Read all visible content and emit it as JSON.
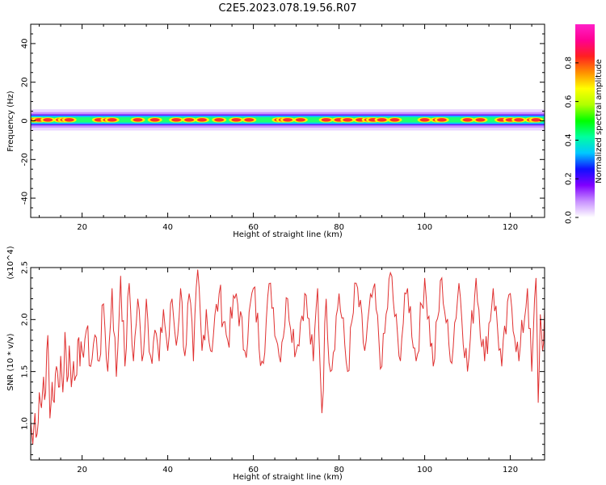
{
  "figure": {
    "title": "C2E5.2023.078.19.56.R07"
  },
  "chart_data": [
    {
      "type": "heatmap",
      "title": "C2E5.2023.078.19.56.R07",
      "xlabel": "Height of straight line (km)",
      "ylabel": "Frequency (Hz)",
      "xlim": [
        8,
        128
      ],
      "ylim": [
        -50,
        50
      ],
      "xticks": [
        20,
        40,
        60,
        80,
        100,
        120
      ],
      "yticks": [
        -40,
        -20,
        0,
        20,
        40
      ],
      "colorbar": {
        "label": "Normalized spectral amplitude",
        "range": [
          0,
          1
        ],
        "ticks": [
          "0.0",
          "0.2",
          "0.4",
          "0.6",
          "0.8"
        ],
        "colors": [
          "#ffffff",
          "#c890ff",
          "#8000ff",
          "#1010ff",
          "#00c8ff",
          "#00ffa0",
          "#00ff00",
          "#b0ff00",
          "#ffff00",
          "#ff9000",
          "#ff2020",
          "#ff0090",
          "#ff20c8"
        ]
      },
      "band": {
        "center_hz": 0.5,
        "half_width_hz": 2.5,
        "hot_spots_km": [
          9,
          10,
          12,
          15,
          16,
          17,
          24,
          26,
          27,
          33,
          37,
          42,
          45,
          48,
          52,
          56,
          59,
          66,
          67,
          68,
          71,
          77,
          80,
          82,
          85,
          87,
          88,
          90,
          93,
          100,
          103,
          104,
          110,
          113,
          118,
          120,
          122,
          125,
          126
        ]
      }
    },
    {
      "type": "line",
      "xlabel": "Height of straight line (km)",
      "ylabel": "SNR (10 * v/v)",
      "y_multiplier": "(x10^4)",
      "xlim": [
        8,
        128
      ],
      "ylim": [
        0.65,
        2.5
      ],
      "xticks": [
        20,
        40,
        60,
        80,
        100,
        120
      ],
      "yticks": [
        "1.0",
        "1.5",
        "2.0",
        "2.5"
      ],
      "line_color": "#e03030",
      "series": [
        {
          "x": [
            8,
            8.5,
            9,
            9.5,
            10,
            10.5,
            11,
            11.5,
            12,
            12.5,
            13,
            13.5,
            14,
            14.5,
            15,
            15.5,
            16,
            16.5,
            17,
            17.5,
            18,
            18.5,
            19,
            19.5,
            20,
            21,
            22,
            23,
            24,
            25,
            26,
            27,
            28,
            29,
            30,
            31,
            32,
            33,
            34,
            35,
            36,
            37,
            38,
            39,
            40,
            41,
            42,
            43,
            44,
            45,
            46,
            47,
            48,
            49,
            50,
            52,
            54,
            56,
            58,
            60,
            62,
            64,
            66,
            68,
            70,
            72,
            74,
            75,
            76,
            77,
            78,
            80,
            82,
            84,
            86,
            88,
            90,
            92,
            94,
            96,
            98,
            100,
            102,
            104,
            106,
            108,
            110,
            112,
            114,
            116,
            118,
            120,
            122,
            124,
            125,
            126,
            126.5,
            127,
            127.5,
            128
          ],
          "y": [
            1.02,
            0.8,
            1.1,
            0.9,
            1.3,
            1.15,
            1.45,
            1.3,
            1.85,
            1.05,
            1.4,
            1.2,
            1.55,
            1.35,
            1.65,
            1.3,
            1.88,
            1.4,
            1.75,
            1.35,
            1.6,
            1.45,
            1.8,
            1.55,
            1.7,
            1.9,
            1.55,
            1.85,
            1.6,
            2.15,
            1.5,
            2.3,
            1.45,
            2.42,
            1.55,
            2.35,
            1.6,
            2.2,
            1.6,
            2.2,
            1.65,
            1.9,
            1.6,
            2.1,
            1.7,
            2.2,
            1.75,
            2.3,
            1.65,
            2.25,
            1.6,
            2.48,
            1.7,
            2.1,
            1.7,
            2.25,
            1.8,
            2.25,
            1.7,
            2.3,
            1.6,
            2.35,
            1.65,
            2.2,
            1.7,
            2.25,
            1.6,
            2.3,
            1.1,
            2.2,
            1.5,
            2.25,
            1.5,
            2.35,
            1.7,
            2.3,
            1.55,
            2.45,
            1.65,
            2.3,
            1.6,
            2.4,
            1.55,
            2.4,
            1.6,
            2.35,
            1.5,
            2.4,
            1.6,
            2.3,
            1.55,
            2.25,
            1.6,
            2.3,
            1.5,
            2.4,
            1.2,
            2.05,
            1.7,
            2.1
          ]
        }
      ]
    }
  ]
}
